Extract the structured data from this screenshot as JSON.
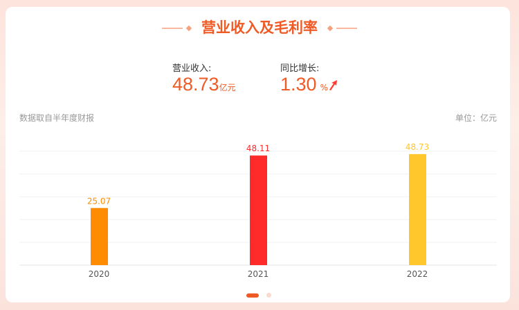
{
  "title": "营业收入及毛利率",
  "revenue": {
    "label": "营业收入:",
    "value": "48.73",
    "unit": "亿元"
  },
  "growth": {
    "label": "同比增长:",
    "value": "1.30",
    "unit": "%",
    "trend": "up-arrow-icon"
  },
  "source_note": "数据取自半年度财报",
  "unit_note": "单位：亿元",
  "colors": {
    "accent": "#ef5a25",
    "bar_2020": "#ff8c00",
    "bar_2021": "#ff2a2a",
    "bar_2022": "#ffc72c"
  },
  "chart_data": {
    "type": "bar",
    "categories": [
      "2020",
      "2021",
      "2022"
    ],
    "values": [
      25.07,
      48.11,
      48.73
    ],
    "data_labels": [
      "25.07",
      "48.11",
      "48.73"
    ],
    "colors": [
      "#ff8c00",
      "#ff2a2a",
      "#ffc72c"
    ],
    "ylim": [
      0,
      50
    ],
    "grid": true,
    "xlabel": "",
    "ylabel": ""
  },
  "pagination": {
    "pages": 2,
    "current": 1
  }
}
